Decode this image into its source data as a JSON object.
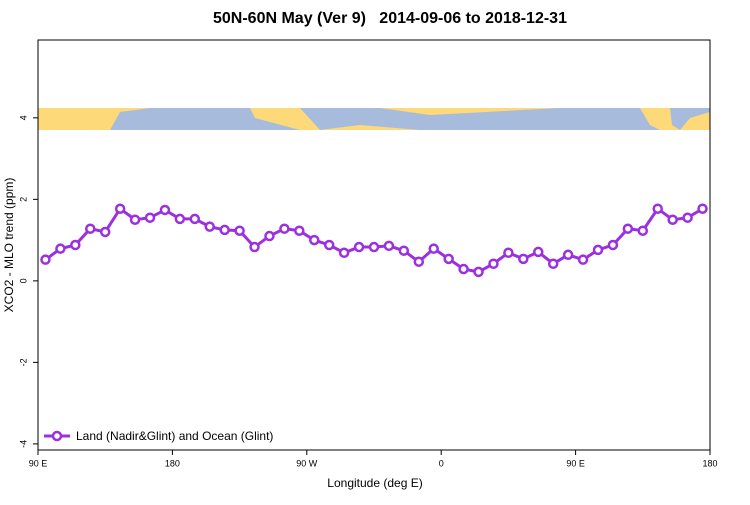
{
  "chart_data": {
    "type": "line",
    "title": "50N-60N May (Ver 9)   2014-09-06 to 2018-12-31",
    "xlabel": "Longitude (deg E)",
    "ylabel": "XCO2 - MLO trend (ppm)",
    "x": [
      95,
      105,
      115,
      125,
      135,
      145,
      155,
      165,
      175,
      185,
      195,
      205,
      215,
      225,
      235,
      245,
      255,
      265,
      275,
      285,
      295,
      305,
      315,
      325,
      335,
      345,
      355,
      365,
      375,
      385,
      395,
      405,
      415,
      425,
      435,
      445,
      455,
      465,
      475,
      485,
      495,
      505,
      515,
      525,
      535
    ],
    "series": [
      {
        "name": "Land (Nadir&Glint) and Ocean (Glint)",
        "color": "#9b30e0",
        "values": [
          0.52,
          0.79,
          0.88,
          1.28,
          1.2,
          1.77,
          1.5,
          1.55,
          1.74,
          1.52,
          1.52,
          1.33,
          1.25,
          1.23,
          0.83,
          1.1,
          1.28,
          1.23,
          1.0,
          0.88,
          0.69,
          0.83,
          0.83,
          0.86,
          0.74,
          0.47,
          0.79,
          0.54,
          0.29,
          0.22,
          0.42,
          0.69,
          0.54,
          0.71,
          0.42,
          0.64,
          0.52,
          0.76,
          0.88,
          1.28,
          1.23,
          1.77,
          1.5,
          1.55,
          1.77
        ]
      }
    ],
    "xlim": [
      90,
      540
    ],
    "xticks": [
      {
        "value": 90,
        "label": "90 E"
      },
      180,
      {
        "value": 270,
        "label": "90 W"
      },
      {
        "value": 360,
        "label": "0"
      },
      {
        "value": 450,
        "label": "90 E"
      },
      {
        "value": 540,
        "label": "180"
      }
    ],
    "ylim": [
      -4.15,
      5.91
    ],
    "yticks": [
      -4,
      -2,
      0,
      2,
      4
    ],
    "legend": "bottom-left"
  }
}
